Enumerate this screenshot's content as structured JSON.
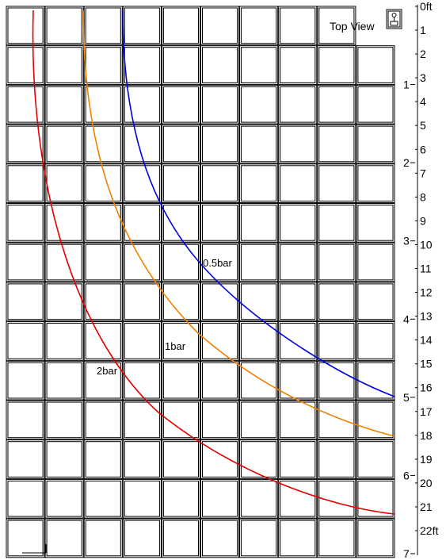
{
  "view_label": "Top View",
  "view_toggle_icon": "sprinkler-side-view-icon",
  "right_scale": {
    "unit": "ft",
    "ticks": [
      "0ft",
      "1",
      "2",
      "3",
      "4",
      "5",
      "6",
      "7",
      "8",
      "9",
      "10",
      "11",
      "12",
      "13",
      "14",
      "15",
      "16",
      "17",
      "18",
      "19",
      "20",
      "21",
      "22ft"
    ]
  },
  "left_scale": {
    "ticks": [
      "1",
      "2",
      "3",
      "4",
      "5",
      "6",
      "7"
    ]
  },
  "grid": {
    "columns": 10,
    "rows": 14,
    "line_color": "#000000"
  },
  "curves": [
    {
      "label": "0.5bar",
      "color": "#0000e0"
    },
    {
      "label": "1bar",
      "color": "#f08000"
    },
    {
      "label": "2bar",
      "color": "#e00000"
    }
  ]
}
